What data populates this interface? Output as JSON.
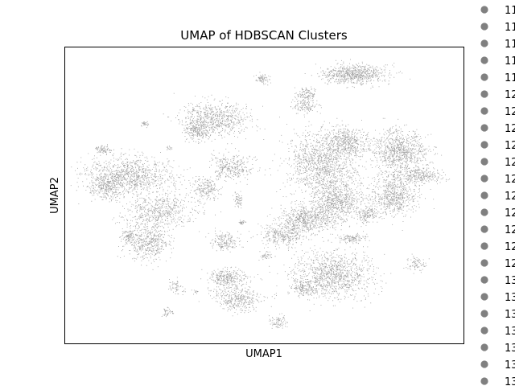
{
  "chart_data": {
    "type": "scatter",
    "title": "UMAP of HDBSCAN Clusters",
    "xlabel": "UMAP1",
    "ylabel": "UMAP2",
    "point_color": "#808080",
    "axis_ticks": false,
    "grid": false,
    "legend_placement": "outside-right",
    "legend_entries": [
      "11",
      "11",
      "11",
      "11",
      "11",
      "12",
      "12",
      "12",
      "12",
      "12",
      "12",
      "12",
      "12",
      "12",
      "12",
      "12",
      "13",
      "13",
      "13",
      "13",
      "13",
      "13",
      "13",
      "13"
    ]
  }
}
